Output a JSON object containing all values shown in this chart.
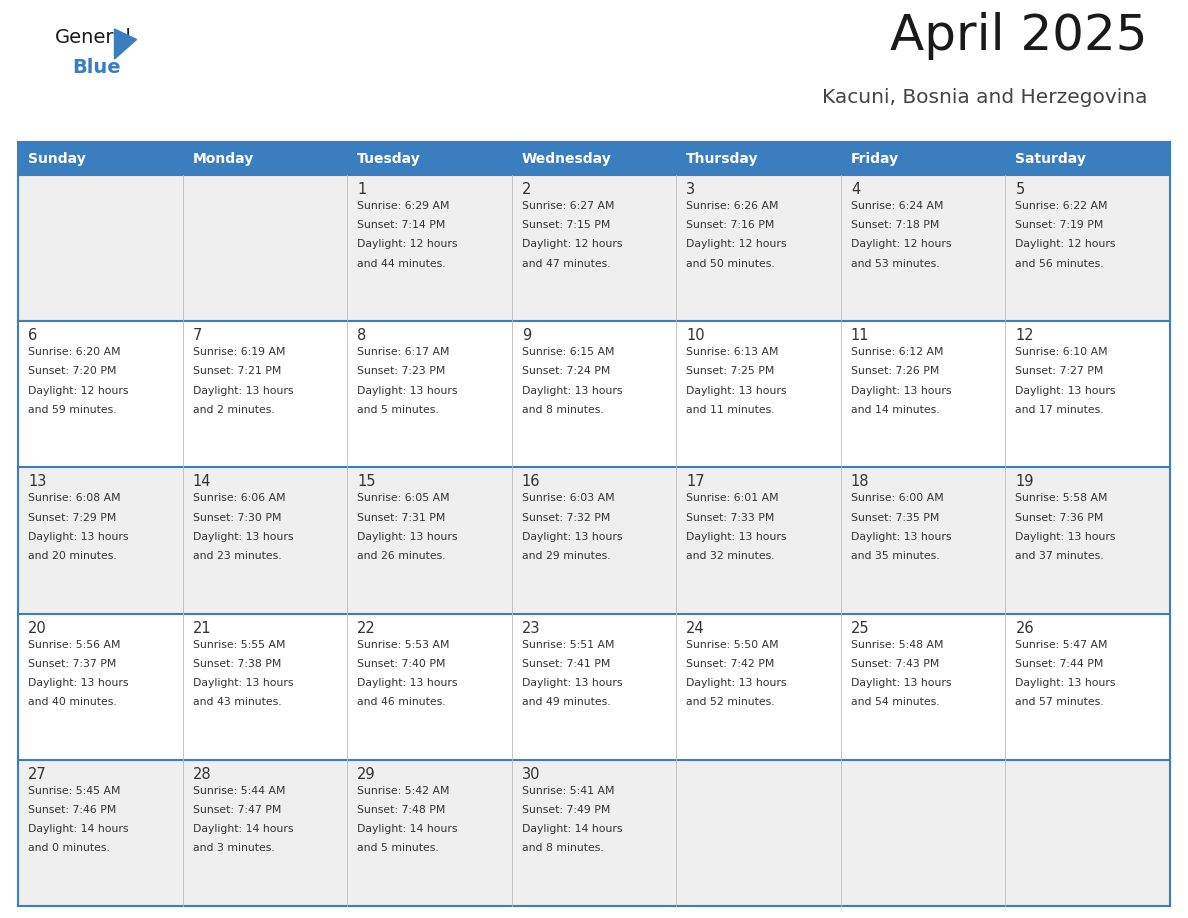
{
  "title": "April 2025",
  "subtitle": "Kacuni, Bosnia and Herzegovina",
  "header_bg": "#3A7EBF",
  "header_text_color": "#FFFFFF",
  "cell_bg_even": "#EFEFEF",
  "cell_bg_odd": "#FFFFFF",
  "border_color": "#3A7EBF",
  "text_color": "#333333",
  "days_of_week": [
    "Sunday",
    "Monday",
    "Tuesday",
    "Wednesday",
    "Thursday",
    "Friday",
    "Saturday"
  ],
  "weeks": [
    [
      {
        "day": "",
        "info": ""
      },
      {
        "day": "",
        "info": ""
      },
      {
        "day": "1",
        "info": "Sunrise: 6:29 AM\nSunset: 7:14 PM\nDaylight: 12 hours\nand 44 minutes."
      },
      {
        "day": "2",
        "info": "Sunrise: 6:27 AM\nSunset: 7:15 PM\nDaylight: 12 hours\nand 47 minutes."
      },
      {
        "day": "3",
        "info": "Sunrise: 6:26 AM\nSunset: 7:16 PM\nDaylight: 12 hours\nand 50 minutes."
      },
      {
        "day": "4",
        "info": "Sunrise: 6:24 AM\nSunset: 7:18 PM\nDaylight: 12 hours\nand 53 minutes."
      },
      {
        "day": "5",
        "info": "Sunrise: 6:22 AM\nSunset: 7:19 PM\nDaylight: 12 hours\nand 56 minutes."
      }
    ],
    [
      {
        "day": "6",
        "info": "Sunrise: 6:20 AM\nSunset: 7:20 PM\nDaylight: 12 hours\nand 59 minutes."
      },
      {
        "day": "7",
        "info": "Sunrise: 6:19 AM\nSunset: 7:21 PM\nDaylight: 13 hours\nand 2 minutes."
      },
      {
        "day": "8",
        "info": "Sunrise: 6:17 AM\nSunset: 7:23 PM\nDaylight: 13 hours\nand 5 minutes."
      },
      {
        "day": "9",
        "info": "Sunrise: 6:15 AM\nSunset: 7:24 PM\nDaylight: 13 hours\nand 8 minutes."
      },
      {
        "day": "10",
        "info": "Sunrise: 6:13 AM\nSunset: 7:25 PM\nDaylight: 13 hours\nand 11 minutes."
      },
      {
        "day": "11",
        "info": "Sunrise: 6:12 AM\nSunset: 7:26 PM\nDaylight: 13 hours\nand 14 minutes."
      },
      {
        "day": "12",
        "info": "Sunrise: 6:10 AM\nSunset: 7:27 PM\nDaylight: 13 hours\nand 17 minutes."
      }
    ],
    [
      {
        "day": "13",
        "info": "Sunrise: 6:08 AM\nSunset: 7:29 PM\nDaylight: 13 hours\nand 20 minutes."
      },
      {
        "day": "14",
        "info": "Sunrise: 6:06 AM\nSunset: 7:30 PM\nDaylight: 13 hours\nand 23 minutes."
      },
      {
        "day": "15",
        "info": "Sunrise: 6:05 AM\nSunset: 7:31 PM\nDaylight: 13 hours\nand 26 minutes."
      },
      {
        "day": "16",
        "info": "Sunrise: 6:03 AM\nSunset: 7:32 PM\nDaylight: 13 hours\nand 29 minutes."
      },
      {
        "day": "17",
        "info": "Sunrise: 6:01 AM\nSunset: 7:33 PM\nDaylight: 13 hours\nand 32 minutes."
      },
      {
        "day": "18",
        "info": "Sunrise: 6:00 AM\nSunset: 7:35 PM\nDaylight: 13 hours\nand 35 minutes."
      },
      {
        "day": "19",
        "info": "Sunrise: 5:58 AM\nSunset: 7:36 PM\nDaylight: 13 hours\nand 37 minutes."
      }
    ],
    [
      {
        "day": "20",
        "info": "Sunrise: 5:56 AM\nSunset: 7:37 PM\nDaylight: 13 hours\nand 40 minutes."
      },
      {
        "day": "21",
        "info": "Sunrise: 5:55 AM\nSunset: 7:38 PM\nDaylight: 13 hours\nand 43 minutes."
      },
      {
        "day": "22",
        "info": "Sunrise: 5:53 AM\nSunset: 7:40 PM\nDaylight: 13 hours\nand 46 minutes."
      },
      {
        "day": "23",
        "info": "Sunrise: 5:51 AM\nSunset: 7:41 PM\nDaylight: 13 hours\nand 49 minutes."
      },
      {
        "day": "24",
        "info": "Sunrise: 5:50 AM\nSunset: 7:42 PM\nDaylight: 13 hours\nand 52 minutes."
      },
      {
        "day": "25",
        "info": "Sunrise: 5:48 AM\nSunset: 7:43 PM\nDaylight: 13 hours\nand 54 minutes."
      },
      {
        "day": "26",
        "info": "Sunrise: 5:47 AM\nSunset: 7:44 PM\nDaylight: 13 hours\nand 57 minutes."
      }
    ],
    [
      {
        "day": "27",
        "info": "Sunrise: 5:45 AM\nSunset: 7:46 PM\nDaylight: 14 hours\nand 0 minutes."
      },
      {
        "day": "28",
        "info": "Sunrise: 5:44 AM\nSunset: 7:47 PM\nDaylight: 14 hours\nand 3 minutes."
      },
      {
        "day": "29",
        "info": "Sunrise: 5:42 AM\nSunset: 7:48 PM\nDaylight: 14 hours\nand 5 minutes."
      },
      {
        "day": "30",
        "info": "Sunrise: 5:41 AM\nSunset: 7:49 PM\nDaylight: 14 hours\nand 8 minutes."
      },
      {
        "day": "",
        "info": ""
      },
      {
        "day": "",
        "info": ""
      },
      {
        "day": "",
        "info": ""
      }
    ]
  ]
}
